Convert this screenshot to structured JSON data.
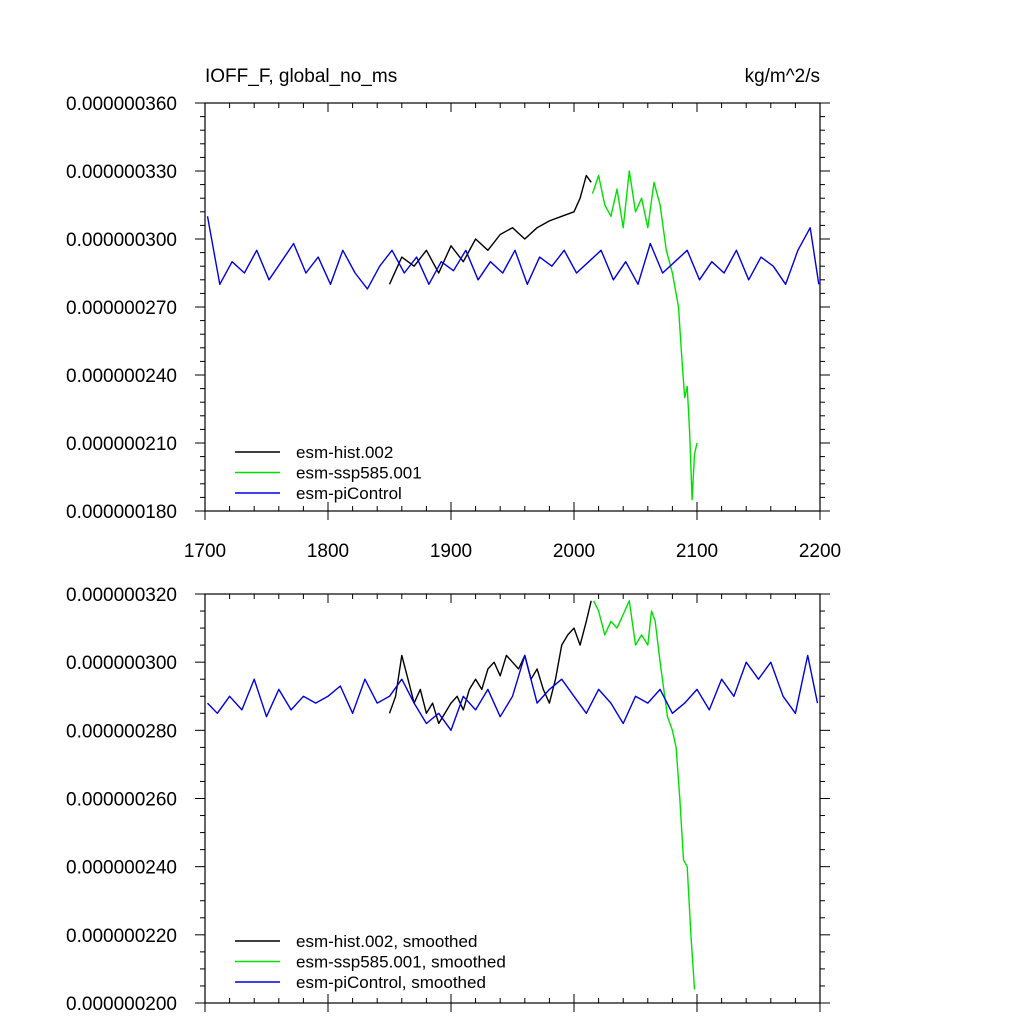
{
  "colors": {
    "hist": "#000000",
    "ssp585": "#00e000",
    "piControl": "#0000e0"
  },
  "chart_data": [
    {
      "type": "line",
      "title": "IOFF_F, global_no_ms",
      "units": "kg/m^2/s",
      "xlim": [
        1700,
        2200
      ],
      "ylim": [
        1.8e-07,
        3.6e-07
      ],
      "x_ticks": [
        "1700",
        "1800",
        "1900",
        "2000",
        "2100",
        "2200"
      ],
      "y_ticks": [
        "0.000000180",
        "0.000000210",
        "0.000000240",
        "0.000000270",
        "0.000000300",
        "0.000000330",
        "0.000000360"
      ],
      "legend": {
        "position": "bottom-left",
        "entries": [
          "esm-hist.002",
          "esm-ssp585.001",
          "esm-piControl"
        ]
      },
      "series": [
        {
          "name": "esm-hist.002",
          "color": "#000000",
          "x": [
            1850,
            1860,
            1870,
            1880,
            1890,
            1900,
            1910,
            1920,
            1930,
            1940,
            1950,
            1960,
            1970,
            1980,
            1990,
            2000,
            2005,
            2010,
            2014
          ],
          "y": [
            2.8e-07,
            2.92e-07,
            2.88e-07,
            2.95e-07,
            2.85e-07,
            2.97e-07,
            2.9e-07,
            3e-07,
            2.95e-07,
            3.02e-07,
            3.05e-07,
            3e-07,
            3.05e-07,
            3.08e-07,
            3.1e-07,
            3.12e-07,
            3.18e-07,
            3.28e-07,
            3.25e-07
          ]
        },
        {
          "name": "esm-ssp585.001",
          "color": "#00e000",
          "x": [
            2015,
            2020,
            2025,
            2030,
            2035,
            2040,
            2045,
            2050,
            2055,
            2060,
            2065,
            2070,
            2075,
            2080,
            2085,
            2088,
            2090,
            2092,
            2094,
            2096,
            2098,
            2100
          ],
          "y": [
            3.2e-07,
            3.28e-07,
            3.15e-07,
            3.1e-07,
            3.22e-07,
            3.05e-07,
            3.3e-07,
            3.12e-07,
            3.18e-07,
            3.05e-07,
            3.25e-07,
            3.15e-07,
            2.95e-07,
            2.85e-07,
            2.7e-07,
            2.45e-07,
            2.3e-07,
            2.35e-07,
            2.15e-07,
            1.85e-07,
            2.05e-07,
            2.1e-07
          ]
        },
        {
          "name": "esm-piControl",
          "color": "#0000e0",
          "x": [
            1702,
            1712,
            1722,
            1732,
            1742,
            1752,
            1762,
            1772,
            1782,
            1792,
            1802,
            1812,
            1822,
            1832,
            1842,
            1852,
            1862,
            1872,
            1882,
            1892,
            1902,
            1912,
            1922,
            1932,
            1942,
            1952,
            1962,
            1972,
            1982,
            1992,
            2002,
            2012,
            2022,
            2032,
            2042,
            2052,
            2062,
            2072,
            2082,
            2092,
            2102,
            2112,
            2122,
            2132,
            2142,
            2152,
            2162,
            2172,
            2182,
            2192,
            2199
          ],
          "y": [
            3.1e-07,
            2.8e-07,
            2.9e-07,
            2.85e-07,
            2.95e-07,
            2.82e-07,
            2.9e-07,
            2.98e-07,
            2.85e-07,
            2.92e-07,
            2.8e-07,
            2.95e-07,
            2.85e-07,
            2.78e-07,
            2.88e-07,
            2.95e-07,
            2.85e-07,
            2.92e-07,
            2.8e-07,
            2.9e-07,
            2.86e-07,
            2.95e-07,
            2.82e-07,
            2.9e-07,
            2.85e-07,
            2.95e-07,
            2.8e-07,
            2.92e-07,
            2.88e-07,
            2.95e-07,
            2.85e-07,
            2.9e-07,
            2.95e-07,
            2.82e-07,
            2.9e-07,
            2.8e-07,
            2.98e-07,
            2.85e-07,
            2.9e-07,
            2.95e-07,
            2.82e-07,
            2.9e-07,
            2.85e-07,
            2.95e-07,
            2.82e-07,
            2.92e-07,
            2.88e-07,
            2.8e-07,
            2.95e-07,
            3.05e-07,
            2.8e-07
          ]
        }
      ]
    },
    {
      "type": "line",
      "xlim": [
        1700,
        2200
      ],
      "ylim": [
        2e-07,
        3.2e-07
      ],
      "y_ticks": [
        "0.000000200",
        "0.000000220",
        "0.000000240",
        "0.000000260",
        "0.000000280",
        "0.000000300",
        "0.000000320"
      ],
      "legend": {
        "position": "bottom-left",
        "entries": [
          "esm-hist.002, smoothed",
          "esm-ssp585.001, smoothed",
          "esm-piControl, smoothed"
        ]
      },
      "series": [
        {
          "name": "esm-hist.002, smoothed",
          "color": "#000000",
          "x": [
            1850,
            1855,
            1860,
            1865,
            1870,
            1875,
            1880,
            1885,
            1890,
            1895,
            1900,
            1905,
            1910,
            1915,
            1920,
            1925,
            1930,
            1935,
            1940,
            1945,
            1950,
            1955,
            1960,
            1965,
            1970,
            1975,
            1980,
            1985,
            1990,
            1995,
            2000,
            2005,
            2010,
            2014
          ],
          "y": [
            2.85e-07,
            2.9e-07,
            3.02e-07,
            2.95e-07,
            2.88e-07,
            2.92e-07,
            2.85e-07,
            2.88e-07,
            2.82e-07,
            2.85e-07,
            2.88e-07,
            2.9e-07,
            2.86e-07,
            2.92e-07,
            2.95e-07,
            2.92e-07,
            2.98e-07,
            3e-07,
            2.96e-07,
            3.02e-07,
            3e-07,
            2.98e-07,
            3.02e-07,
            2.95e-07,
            2.98e-07,
            2.92e-07,
            2.88e-07,
            2.95e-07,
            3.05e-07,
            3.08e-07,
            3.1e-07,
            3.05e-07,
            3.12e-07,
            3.18e-07
          ]
        },
        {
          "name": "esm-ssp585.001, smoothed",
          "color": "#00e000",
          "x": [
            2016,
            2020,
            2025,
            2030,
            2035,
            2040,
            2045,
            2050,
            2055,
            2060,
            2063,
            2066,
            2070,
            2073,
            2076,
            2080,
            2083,
            2086,
            2089,
            2092,
            2095,
            2098
          ],
          "y": [
            3.18e-07,
            3.15e-07,
            3.08e-07,
            3.12e-07,
            3.1e-07,
            3.14e-07,
            3.18e-07,
            3.05e-07,
            3.08e-07,
            3.05e-07,
            3.15e-07,
            3.12e-07,
            3e-07,
            2.92e-07,
            2.84e-07,
            2.8e-07,
            2.75e-07,
            2.6e-07,
            2.42e-07,
            2.4e-07,
            2.2e-07,
            2.04e-07
          ]
        },
        {
          "name": "esm-piControl, smoothed",
          "color": "#0000e0",
          "x": [
            1702,
            1710,
            1720,
            1730,
            1740,
            1750,
            1760,
            1770,
            1780,
            1790,
            1800,
            1810,
            1820,
            1830,
            1840,
            1850,
            1860,
            1870,
            1880,
            1890,
            1900,
            1910,
            1920,
            1930,
            1940,
            1950,
            1960,
            1970,
            1980,
            1990,
            2000,
            2010,
            2020,
            2030,
            2040,
            2050,
            2060,
            2070,
            2080,
            2090,
            2100,
            2110,
            2120,
            2130,
            2140,
            2150,
            2160,
            2170,
            2180,
            2190,
            2198
          ],
          "y": [
            2.88e-07,
            2.85e-07,
            2.9e-07,
            2.86e-07,
            2.95e-07,
            2.84e-07,
            2.92e-07,
            2.86e-07,
            2.9e-07,
            2.88e-07,
            2.9e-07,
            2.93e-07,
            2.85e-07,
            2.95e-07,
            2.88e-07,
            2.9e-07,
            2.95e-07,
            2.88e-07,
            2.82e-07,
            2.85e-07,
            2.8e-07,
            2.9e-07,
            2.86e-07,
            2.92e-07,
            2.84e-07,
            2.9e-07,
            3.02e-07,
            2.88e-07,
            2.92e-07,
            2.95e-07,
            2.9e-07,
            2.85e-07,
            2.92e-07,
            2.88e-07,
            2.82e-07,
            2.9e-07,
            2.88e-07,
            2.92e-07,
            2.85e-07,
            2.88e-07,
            2.92e-07,
            2.86e-07,
            2.95e-07,
            2.9e-07,
            3e-07,
            2.95e-07,
            3e-07,
            2.9e-07,
            2.85e-07,
            3.02e-07,
            2.88e-07
          ]
        }
      ]
    }
  ]
}
